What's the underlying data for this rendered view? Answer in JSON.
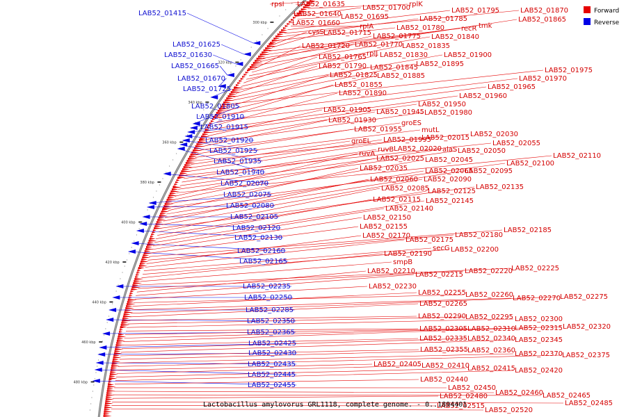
{
  "caption": "Lactobacillus amylovorus GRL1118, complete genome. - 0..1894401",
  "legend": {
    "forward": {
      "label": "Forward",
      "color": "#e60000"
    },
    "reverse": {
      "label": "Reverse",
      "color": "#0000e6"
    }
  },
  "ticks": [
    "300 kbp",
    "320 kbp",
    "340 kbp",
    "360 kbp",
    "380 kbp",
    "400 kbp",
    "420 kbp",
    "440 kbp",
    "460 kbp",
    "480 kbp"
  ],
  "reverse_labels": [
    "LAB52_01415",
    "LAB52_01625",
    "LAB52_01630",
    "LAB52_01665",
    "LAB52_01670",
    "LAB52_01725",
    "LAB52_01805",
    "LAB52_01910",
    "LAB52_01915",
    "LAB52_01920",
    "LAB52_01925",
    "LAB52_01935",
    "LAB52_01940",
    "LAB52_02070",
    "LAB52_02075",
    "LAB52_02080",
    "LAB52_02105",
    "LAB52_02120",
    "LAB52_02130",
    "LAB52_02160",
    "LAB52_02165",
    "LAB52_02235",
    "LAB52_02250",
    "LAB52_02285",
    "LAB52_02350",
    "LAB52_02365",
    "LAB52_02425",
    "LAB52_02430",
    "LAB52_02435",
    "LAB52_02445",
    "LAB52_02455"
  ],
  "forward_labels": [
    "rpsI",
    "LAB52_01635",
    "rplK",
    "LAB52_01640",
    "LAB52_01700",
    "LAB52_01695",
    "LAB52_01660",
    "rplA",
    "LAB52_01795",
    "LAB52_01870",
    "LAB52_01785",
    "LAB52_01780",
    "cysS",
    "LAB52_01715",
    "recR",
    "tmk",
    "LAB52_01865",
    "LAB52_01775",
    "LAB52_01840",
    "LAB52_01720",
    "LAB52_01770",
    "LAB52_01835",
    "rplJ",
    "LAB52_01765",
    "LAB52_01830",
    "LAB52_01900",
    "LAB52_01790",
    "LAB52_01845",
    "LAB52_01895",
    "LAB52_01975",
    "LAB52_01825",
    "LAB52_01885",
    "LAB52_01970",
    "LAB52_01855",
    "LAB52_01965",
    "LAB52_01890",
    "LAB52_01960",
    "LAB52_01950",
    "LAB52_01905",
    "LAB52_01945",
    "LAB52_01980",
    "LAB52_01930",
    "groES",
    "LAB52_01955",
    "mutL",
    "LAB52_02030",
    "groEL",
    "LAB52_01995",
    "LAB52_02015",
    "LAB52_02055",
    "ruvB",
    "LAB52_02020",
    "alaS",
    "LAB52_02050",
    "LAB52_02110",
    "ruvA",
    "LAB52_02025",
    "LAB52_02045",
    "LAB52_02100",
    "LAB52_02035",
    "LAB52_02065",
    "LAB52_02095",
    "LAB52_02060",
    "LAB52_02090",
    "LAB52_02135",
    "LAB52_02085",
    "LAB52_02125",
    "LAB52_02115",
    "LAB52_02145",
    "LAB52_02140",
    "LAB52_02150",
    "LAB52_02155",
    "LAB52_02185",
    "LAB52_02180",
    "LAB52_02170",
    "LAB52_02175",
    "secG",
    "LAB52_02200",
    "LAB52_02190",
    "smpB",
    "LAB52_02225",
    "LAB52_02220",
    "LAB52_02210",
    "LAB52_02215",
    "LAB52_02230",
    "LAB52_02260",
    "LAB52_02255",
    "LAB52_02270",
    "LAB52_02275",
    "LAB52_02265",
    "LAB52_02290",
    "LAB52_02295",
    "LAB52_02300",
    "LAB52_02305",
    "LAB52_02310",
    "LAB52_02315",
    "LAB52_02320",
    "LAB52_02335",
    "LAB52_02340",
    "LAB52_02345",
    "LAB52_02355",
    "LAB52_02360",
    "LAB52_02370",
    "LAB52_02375",
    "LAB52_02405",
    "LAB52_02410",
    "LAB52_02415",
    "LAB52_02420",
    "LAB52_02440",
    "LAB52_02450",
    "LAB52_02460",
    "LAB52_02465",
    "LAB52_02480",
    "LAB52_02485",
    "LAB52_02515",
    "LAB52_02520"
  ]
}
